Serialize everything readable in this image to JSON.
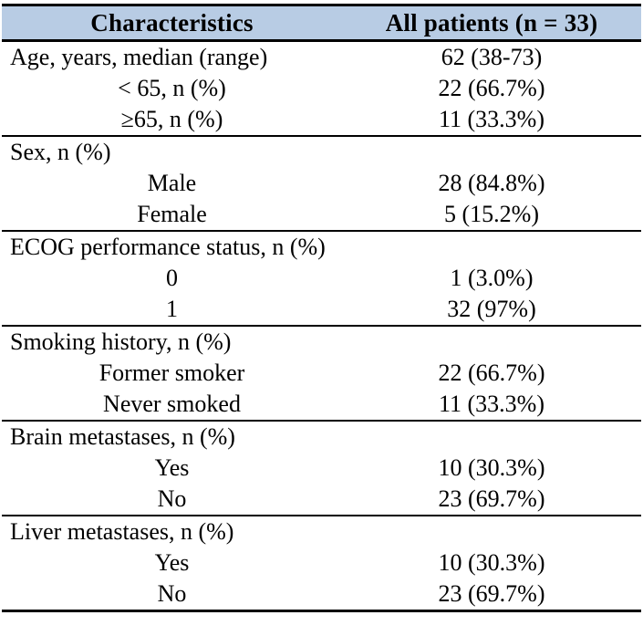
{
  "table": {
    "title_semantic": "patient-characteristics-table",
    "colors": {
      "header_background": "#B8CCE4",
      "border": "#000000",
      "text": "#000000"
    },
    "header": {
      "col1": "Characteristics",
      "col2": "All patients (n = 33)"
    },
    "rows": [
      {
        "label": "Age, years, median (range)",
        "value": "62 (38-73)",
        "indent": false,
        "section_start": false
      },
      {
        "label": "< 65, n (%)",
        "value": "22 (66.7%)",
        "indent": true,
        "section_start": false
      },
      {
        "label": "≥65, n (%)",
        "value": "11 (33.3%)",
        "indent": true,
        "section_start": false
      },
      {
        "label": "Sex, n (%)",
        "value": "",
        "indent": false,
        "section_start": true
      },
      {
        "label": "Male",
        "value": "28 (84.8%)",
        "indent": true,
        "section_start": false
      },
      {
        "label": "Female",
        "value": "5 (15.2%)",
        "indent": true,
        "section_start": false
      },
      {
        "label": "ECOG performance status, n (%)",
        "value": "",
        "indent": false,
        "section_start": true
      },
      {
        "label": "0",
        "value": "1 (3.0%)",
        "indent": true,
        "section_start": false
      },
      {
        "label": "1",
        "value": "32 (97%)",
        "indent": true,
        "section_start": false
      },
      {
        "label": "Smoking history, n (%)",
        "value": "",
        "indent": false,
        "section_start": true
      },
      {
        "label": "Former smoker",
        "value": "22 (66.7%)",
        "indent": true,
        "section_start": false
      },
      {
        "label": "Never smoked",
        "value": "11 (33.3%)",
        "indent": true,
        "section_start": false
      },
      {
        "label": "Brain metastases, n (%)",
        "value": "",
        "indent": false,
        "section_start": true
      },
      {
        "label": "Yes",
        "value": "10 (30.3%)",
        "indent": true,
        "section_start": false
      },
      {
        "label": "No",
        "value": "23 (69.7%)",
        "indent": true,
        "section_start": false
      },
      {
        "label": "Liver metastases, n (%)",
        "value": "",
        "indent": false,
        "section_start": true
      },
      {
        "label": "Yes",
        "value": "10 (30.3%)",
        "indent": true,
        "section_start": false
      },
      {
        "label": "No",
        "value": "23 (69.7%)",
        "indent": true,
        "section_start": false
      }
    ]
  }
}
